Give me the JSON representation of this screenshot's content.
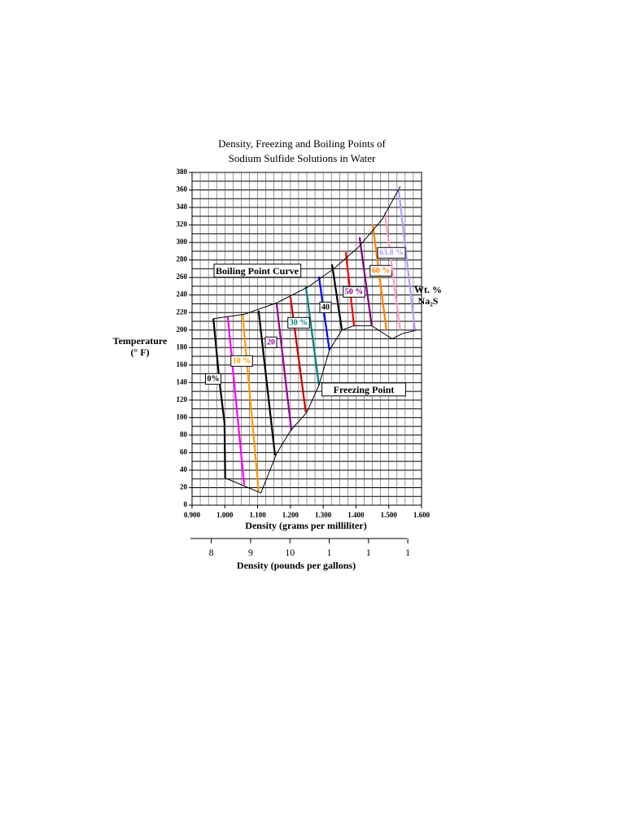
{
  "chart_data": {
    "type": "line",
    "title": [
      "Density, Freezing and Boiling Points of",
      "Sodium Sulfide Solutions in Water"
    ],
    "xlabel": "Density (grams per milliliter)",
    "ylabel": [
      "Temperature",
      "(° F)"
    ],
    "x2label": "Density (pounds per gallons)",
    "annotations": [
      "Wt. %",
      "Na₂S"
    ],
    "xlim": [
      0.9,
      1.6
    ],
    "xticks": [
      {
        "value": 0.9,
        "label": "0.900"
      },
      {
        "value": 1.0,
        "label": "1.000"
      },
      {
        "value": 1.1,
        "label": "1.100"
      },
      {
        "value": 1.2,
        "label": "1.200"
      },
      {
        "value": 1.3,
        "label": "1.300"
      },
      {
        "value": 1.4,
        "label": "1.400"
      },
      {
        "value": 1.5,
        "label": "1.500"
      },
      {
        "value": 1.6,
        "label": "1.600"
      }
    ],
    "ylim": [
      0,
      380
    ],
    "yticks": [
      0,
      20,
      40,
      60,
      80,
      100,
      120,
      140,
      160,
      180,
      200,
      220,
      240,
      260,
      280,
      300,
      320,
      340,
      360,
      380
    ],
    "x2lim": [
      7.51,
      13.35
    ],
    "x2ticks": [
      8,
      9,
      10,
      {
        "value": 11,
        "label": "1"
      },
      {
        "value": 12,
        "label": "1"
      },
      {
        "value": 13,
        "label": "1"
      }
    ],
    "grid": true,
    "grid_step": {
      "x": 0.025,
      "y": 10
    },
    "series": [
      {
        "name": "0%",
        "color": "#000000",
        "x": [
          0.965,
          0.984,
          0.999,
          1.001
        ],
        "values": [
          213,
          140,
          94,
          31
        ]
      },
      {
        "color": "#ff00ff",
        "x": [
          1.009,
          1.059
        ],
        "values": [
          215,
          23
        ]
      },
      {
        "name": "10 %",
        "color": "#ff9900",
        "x": [
          1.054,
          1.103
        ],
        "values": [
          218,
          16
        ]
      },
      {
        "color": "#000000",
        "x": [
          1.103,
          1.153
        ],
        "values": [
          222,
          57
        ]
      },
      {
        "name": "20",
        "color": "#990099",
        "x": [
          1.158,
          1.203
        ],
        "values": [
          230,
          85
        ]
      },
      {
        "color": "#cc0000",
        "x": [
          1.2,
          1.247
        ],
        "values": [
          238,
          106
        ]
      },
      {
        "name": "30 %",
        "color": "#008080",
        "x": [
          1.247,
          1.287
        ],
        "values": [
          250,
          137
        ]
      },
      {
        "color": "#0000ff",
        "x": [
          1.287,
          1.319
        ],
        "values": [
          261,
          177
        ]
      },
      {
        "name": "40",
        "color": "#000000",
        "x": [
          1.327,
          1.357
        ],
        "values": [
          275,
          200
        ]
      },
      {
        "color": "#ff0000",
        "x": [
          1.369,
          1.394
        ],
        "values": [
          289,
          205
        ]
      },
      {
        "name": "50 %",
        "color": "#800080",
        "x": [
          1.411,
          1.448
        ],
        "values": [
          306,
          205
        ]
      },
      {
        "name": "60 %",
        "color": "#ff8000",
        "x": [
          1.451,
          1.493
        ],
        "values": [
          321,
          200
        ]
      },
      {
        "color": "#ff99cc",
        "x": [
          1.488,
          1.535
        ],
        "values": [
          334,
          200
        ]
      },
      {
        "name": "63.8 %",
        "color": "#b399ff",
        "x": [
          1.53,
          1.58
        ],
        "values": [
          361,
          200
        ]
      },
      {
        "name": "Boiling Point Curve",
        "color": "#000000",
        "x": [
          0.965,
          1.059,
          1.158,
          1.257,
          1.332,
          1.406,
          1.481,
          1.535
        ],
        "values": [
          213,
          218,
          231,
          250,
          270,
          294,
          327,
          364
        ]
      },
      {
        "name": "Freezing Point",
        "color": "#000000",
        "x": [
          1.001,
          1.11,
          1.158,
          1.2,
          1.25,
          1.287,
          1.319,
          1.357,
          1.394,
          1.448,
          1.51,
          1.542,
          1.585
        ],
        "values": [
          31,
          14,
          59,
          85,
          106,
          137,
          177,
          200,
          205,
          205,
          190,
          196,
          200
        ]
      }
    ]
  }
}
